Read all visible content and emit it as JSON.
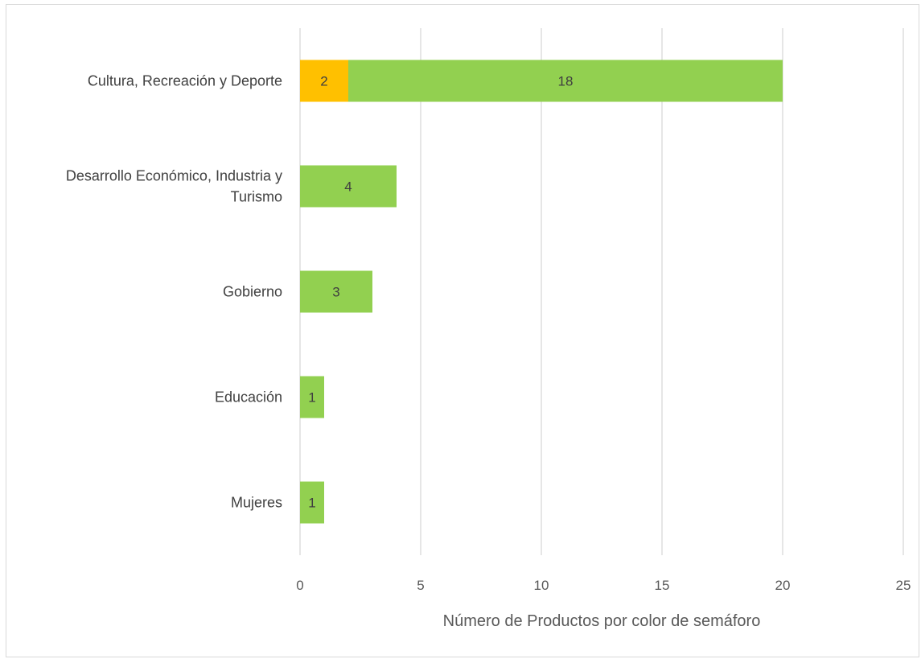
{
  "chart_data": {
    "type": "bar",
    "orientation": "horizontal",
    "stacked": true,
    "title": "",
    "xlabel": "Número de Productos por color de semáforo",
    "ylabel": "",
    "xlim": [
      0,
      25
    ],
    "xticks": [
      "0",
      "5",
      "10",
      "15",
      "20",
      "25"
    ],
    "grid": true,
    "legend": "none",
    "categories": [
      [
        "Cultura, Recreación y Deporte"
      ],
      [
        "Desarrollo Económico, Industria y",
        "Turismo"
      ],
      [
        "Gobierno"
      ],
      [
        "Educación"
      ],
      [
        "Mujeres"
      ]
    ],
    "series": [
      {
        "color": "#ffc000",
        "values": [
          2,
          0,
          0,
          0,
          0
        ]
      },
      {
        "color": "#92d050",
        "values": [
          18,
          4,
          3,
          1,
          1
        ]
      }
    ]
  }
}
